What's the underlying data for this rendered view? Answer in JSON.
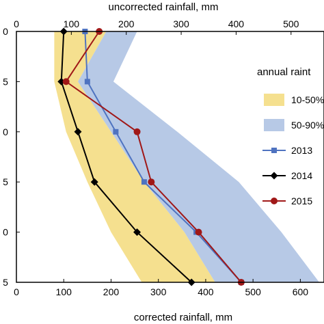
{
  "chart_data": {
    "type": "line",
    "top_axis": {
      "label": "uncorrected rainfall, mm",
      "range": [
        0,
        560
      ],
      "ticks": [
        "0",
        "100",
        "200",
        "300",
        "400",
        "500"
      ],
      "tick_values": [
        0,
        100,
        200,
        300,
        400,
        500
      ]
    },
    "bottom_axis": {
      "label": "corrected rainfall, mm",
      "range": [
        0,
        650
      ],
      "ticks": [
        "0",
        "100",
        "200",
        "300",
        "400",
        "500",
        "600"
      ],
      "tick_values": [
        0,
        100,
        200,
        300,
        400,
        500,
        600
      ]
    },
    "left_axis": {
      "range": [
        0,
        5
      ],
      "ticks": [
        "0",
        "5",
        "0",
        "5",
        "0",
        "5"
      ],
      "tick_values": [
        0,
        1,
        2,
        3,
        4,
        5
      ],
      "inverted": true
    },
    "grid": false,
    "legend": {
      "title": "annual raint",
      "placement": "right",
      "entries": [
        "10-50%",
        "50-90%",
        "2013",
        "2014",
        "2015"
      ]
    },
    "bands": [
      {
        "name": "10-50%",
        "color": "#f5e08f",
        "y": [
          0,
          1,
          2,
          3,
          4,
          5
        ],
        "low": [
          80,
          80,
          105,
          150,
          200,
          265
        ],
        "high": [
          190,
          130,
          200,
          270,
          355,
          420
        ]
      },
      {
        "name": "50-90%",
        "color": "#b7c9e6",
        "y": [
          0,
          1,
          2,
          3,
          4,
          5
        ],
        "low": [
          190,
          130,
          200,
          270,
          355,
          420
        ],
        "high": [
          255,
          205,
          340,
          470,
          560,
          640
        ]
      }
    ],
    "series": [
      {
        "name": "2013",
        "color": "#4f73c0",
        "marker": "square",
        "y": [
          0,
          1,
          2,
          3,
          4,
          5
        ],
        "x": [
          145,
          150,
          210,
          270,
          380,
          475
        ]
      },
      {
        "name": "2014",
        "color": "#000000",
        "marker": "diamond",
        "y": [
          0,
          1,
          2,
          3,
          4,
          5
        ],
        "x": [
          100,
          95,
          130,
          165,
          255,
          370
        ]
      },
      {
        "name": "2015",
        "color": "#a01818",
        "marker": "circle",
        "y": [
          0,
          1,
          2,
          3,
          4,
          5
        ],
        "x": [
          175,
          105,
          255,
          285,
          385,
          475
        ]
      }
    ]
  }
}
